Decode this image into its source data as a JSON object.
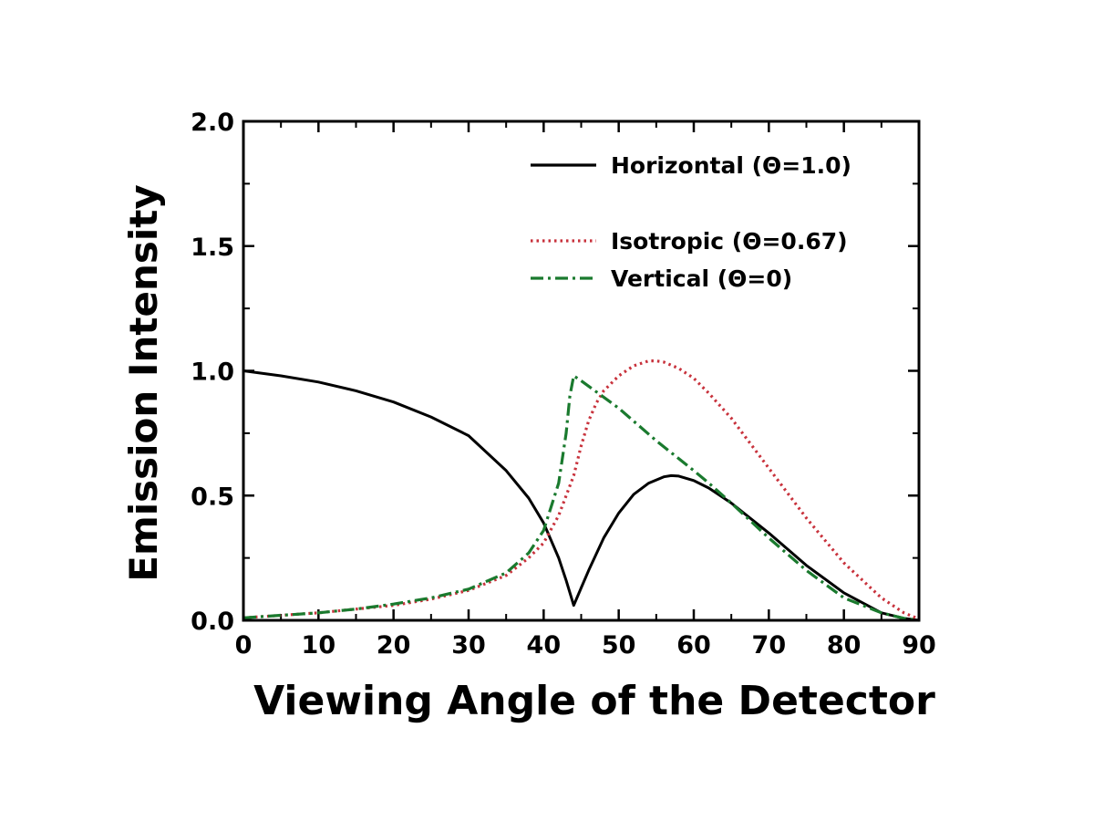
{
  "chart_data": {
    "type": "line",
    "title": "",
    "xlabel": "Viewing Angle of the Detector",
    "ylabel": "Emission Intensity",
    "xlim": [
      0,
      90
    ],
    "ylim": [
      0,
      2.0
    ],
    "xticks": [
      "0",
      "10",
      "20",
      "30",
      "40",
      "50",
      "60",
      "70",
      "80",
      "90"
    ],
    "yticks": [
      "0.0",
      "0.5",
      "1.0",
      "1.5",
      "2.0"
    ],
    "grid": false,
    "legend_position": "top-right",
    "series": [
      {
        "name": "Horizontal (Θ=1.0)",
        "color": "#000000",
        "style": "solid",
        "x": [
          0,
          5,
          10,
          15,
          20,
          25,
          30,
          35,
          38,
          40,
          42,
          43,
          44,
          45,
          46,
          48,
          50,
          52,
          54,
          56,
          57,
          58,
          60,
          62,
          65,
          70,
          75,
          80,
          85,
          88,
          90
        ],
        "y": [
          1.0,
          0.98,
          0.955,
          0.92,
          0.875,
          0.815,
          0.74,
          0.6,
          0.49,
          0.39,
          0.25,
          0.16,
          0.06,
          0.13,
          0.2,
          0.33,
          0.43,
          0.505,
          0.55,
          0.575,
          0.58,
          0.578,
          0.56,
          0.53,
          0.47,
          0.35,
          0.22,
          0.11,
          0.03,
          0.008,
          0.0
        ]
      },
      {
        "name": "Isotropic (Θ=0.67)",
        "color": "#c8323c",
        "style": "dotted",
        "x": [
          0,
          5,
          10,
          15,
          20,
          25,
          30,
          35,
          38,
          40,
          42,
          44,
          45,
          46,
          47,
          48,
          50,
          52,
          54,
          55,
          56,
          58,
          60,
          62,
          65,
          70,
          75,
          80,
          85,
          88,
          90
        ],
        "y": [
          0.01,
          0.02,
          0.03,
          0.045,
          0.06,
          0.085,
          0.12,
          0.18,
          0.25,
          0.31,
          0.42,
          0.58,
          0.7,
          0.8,
          0.87,
          0.92,
          0.98,
          1.02,
          1.04,
          1.04,
          1.035,
          1.01,
          0.97,
          0.91,
          0.81,
          0.61,
          0.41,
          0.23,
          0.09,
          0.03,
          0.005
        ]
      },
      {
        "name": "Vertical (Θ=0)",
        "color": "#1a7a2e",
        "style": "dashdot",
        "x": [
          0,
          5,
          10,
          15,
          20,
          25,
          30,
          35,
          38,
          40,
          42,
          43,
          43.5,
          44,
          45,
          50,
          55,
          60,
          62,
          65,
          70,
          75,
          80,
          85,
          88,
          90
        ],
        "y": [
          0.01,
          0.02,
          0.03,
          0.045,
          0.065,
          0.09,
          0.125,
          0.19,
          0.27,
          0.36,
          0.55,
          0.75,
          0.9,
          0.98,
          0.96,
          0.85,
          0.72,
          0.6,
          0.55,
          0.47,
          0.33,
          0.2,
          0.09,
          0.03,
          0.008,
          0.0
        ]
      }
    ]
  }
}
